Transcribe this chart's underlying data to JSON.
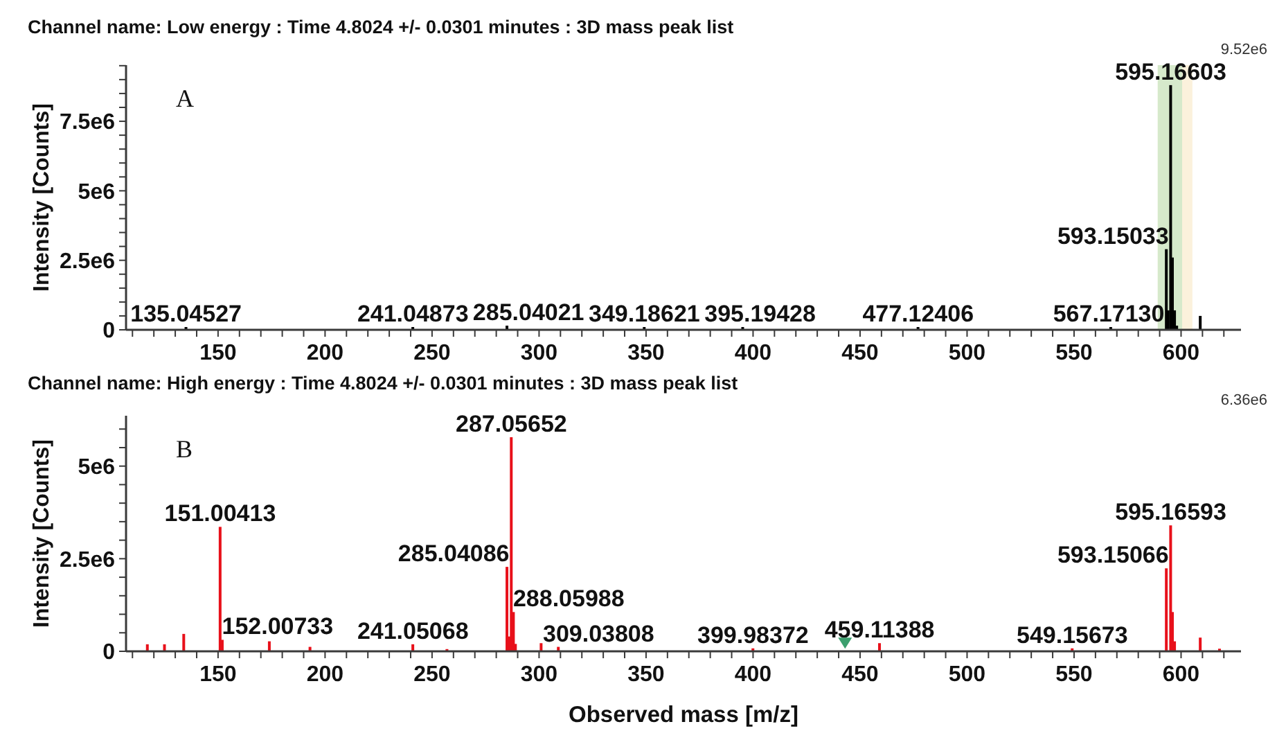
{
  "chart_data": [
    {
      "type": "bar",
      "title": "Channel name: Low energy : Time 4.8024 +/- 0.0301 minutes : 3D mass peak list",
      "ylabel": "Intensity [Counts]",
      "annotations": [
        "A",
        "9.52e6",
        {
          "text": "135.04527",
          "x": 135.04527,
          "y": 100000
        },
        {
          "text": "241.04873",
          "x": 241.04873,
          "y": 100000
        },
        {
          "text": "285.04021",
          "x": 285.04021,
          "y": 150000
        },
        {
          "text": "349.18621",
          "x": 349.18621,
          "y": 100000
        },
        {
          "text": "395.19428",
          "x": 395.19428,
          "y": 100000
        },
        {
          "text": "477.12406",
          "x": 477.12406,
          "y": 100000
        },
        {
          "text": "567.17130",
          "x": 567.1713,
          "y": 100000
        },
        {
          "text": "593.15033",
          "x": 593.15033,
          "y": 2900000
        },
        {
          "text": "595.16603",
          "x": 595.16603,
          "y": 8800000
        }
      ],
      "x": [
        135.04527,
        241.04873,
        285.04021,
        349.18621,
        395.19428,
        477.12406,
        567.1713,
        593.15033,
        594,
        595.16603,
        596,
        597,
        598,
        609
      ],
      "series": [
        {
          "color": "#000000",
          "values": [
            100000,
            100000,
            150000,
            100000,
            100000,
            100000,
            100000,
            2900000,
            700000,
            8800000,
            2600000,
            700000,
            150000,
            500000
          ]
        }
      ],
      "xlim": [
        107,
        628
      ],
      "ylim": [
        0,
        9520000
      ],
      "xticks": [
        {
          "value": 110,
          "label": null
        },
        {
          "value": 120,
          "label": null
        },
        {
          "value": 130,
          "label": null
        },
        {
          "value": 140,
          "label": null
        },
        150,
        {
          "value": 160,
          "label": null
        },
        {
          "value": 170,
          "label": null
        },
        {
          "value": 180,
          "label": null
        },
        {
          "value": 190,
          "label": null
        },
        200,
        {
          "value": 210,
          "label": null
        },
        {
          "value": 220,
          "label": null
        },
        {
          "value": 230,
          "label": null
        },
        {
          "value": 240,
          "label": null
        },
        250,
        {
          "value": 260,
          "label": null
        },
        {
          "value": 270,
          "label": null
        },
        {
          "value": 280,
          "label": null
        },
        {
          "value": 290,
          "label": null
        },
        300,
        {
          "value": 310,
          "label": null
        },
        {
          "value": 320,
          "label": null
        },
        {
          "value": 330,
          "label": null
        },
        {
          "value": 340,
          "label": null
        },
        350,
        {
          "value": 360,
          "label": null
        },
        {
          "value": 370,
          "label": null
        },
        {
          "value": 380,
          "label": null
        },
        {
          "value": 390,
          "label": null
        },
        400,
        {
          "value": 410,
          "label": null
        },
        {
          "value": 420,
          "label": null
        },
        {
          "value": 430,
          "label": null
        },
        {
          "value": 440,
          "label": null
        },
        450,
        {
          "value": 460,
          "label": null
        },
        {
          "value": 470,
          "label": null
        },
        {
          "value": 480,
          "label": null
        },
        {
          "value": 490,
          "label": null
        },
        500,
        {
          "value": 510,
          "label": null
        },
        {
          "value": 520,
          "label": null
        },
        {
          "value": 530,
          "label": null
        },
        {
          "value": 540,
          "label": null
        },
        550,
        {
          "value": 560,
          "label": null
        },
        {
          "value": 570,
          "label": null
        },
        {
          "value": 580,
          "label": null
        },
        {
          "value": 590,
          "label": null
        },
        600,
        {
          "value": 610,
          "label": null
        },
        {
          "value": 620,
          "label": null
        }
      ],
      "yticks": [
        0,
        {
          "value": 500000,
          "label": null
        },
        {
          "value": 1000000,
          "label": null
        },
        {
          "value": 1500000,
          "label": null
        },
        {
          "value": 2000000,
          "label": null
        },
        {
          "value": 2500000,
          "label": "2.5e6"
        },
        {
          "value": 3000000,
          "label": null
        },
        {
          "value": 3500000,
          "label": null
        },
        {
          "value": 4000000,
          "label": null
        },
        {
          "value": 4500000,
          "label": null
        },
        {
          "value": 5000000,
          "label": "5e6"
        },
        {
          "value": 5500000,
          "label": null
        },
        {
          "value": 6000000,
          "label": null
        },
        {
          "value": 6500000,
          "label": null
        },
        {
          "value": 7000000,
          "label": null
        },
        {
          "value": 7500000,
          "label": "7.5e6"
        },
        {
          "value": 8000000,
          "label": null
        },
        {
          "value": 8500000,
          "label": null
        },
        {
          "value": 9000000,
          "label": null
        },
        {
          "value": 9500000,
          "label": null
        }
      ],
      "bands": [
        {
          "axis": "x",
          "from": 589.1,
          "to": 605.3,
          "color": "#fbf1dc"
        },
        {
          "axis": "x",
          "from": 589.1,
          "to": 600.5,
          "color": "#d6e9cb"
        }
      ]
    },
    {
      "type": "bar",
      "title": "Channel name: High energy : Time 4.8024 +/- 0.0301 minutes : 3D mass peak list",
      "xlabel": "Observed mass [m/z]",
      "ylabel": "Intensity [Counts]",
      "annotations": [
        "B",
        "6.36e6",
        {
          "text": "151.00413",
          "x": 151.00413,
          "y": 3360000
        },
        {
          "text": "152.00733",
          "x": 152.00733,
          "y": 310000
        },
        {
          "text": "241.05068",
          "x": 241.05068,
          "y": 190000
        },
        {
          "text": "285.04086",
          "x": 285.04086,
          "y": 2280000
        },
        {
          "text": "287.05652",
          "x": 287.05652,
          "y": 5780000
        },
        {
          "text": "288.05988",
          "x": 288.05988,
          "y": 1060000
        },
        {
          "text": "309.03808",
          "x": 309.03808,
          "y": 120000
        },
        {
          "text": "399.98372",
          "x": 399.98372,
          "y": 80000
        },
        {
          "text": "459.11388",
          "x": 459.11388,
          "y": 220000
        },
        {
          "text": "549.15673",
          "x": 549.15673,
          "y": 80000
        },
        {
          "text": "593.15066",
          "x": 593.15066,
          "y": 2240000
        },
        {
          "text": "595.16593",
          "x": 595.16593,
          "y": 3400000
        }
      ],
      "x": [
        117,
        125,
        134,
        151.00413,
        152.00733,
        174,
        193,
        241.05068,
        257,
        285.04086,
        286,
        287.05652,
        288.05988,
        289,
        301,
        309.03808,
        399.98372,
        459.11388,
        549.15673,
        593.15066,
        595.16593,
        596,
        597,
        609,
        618
      ],
      "series": [
        {
          "color": "#e8101a",
          "values": [
            190000,
            190000,
            470000,
            3360000,
            310000,
            270000,
            120000,
            190000,
            60000,
            2280000,
            400000,
            5780000,
            1060000,
            200000,
            220000,
            120000,
            80000,
            220000,
            80000,
            2240000,
            3400000,
            1060000,
            270000,
            370000,
            70000
          ]
        },
        {
          "type": "scatter",
          "color": "#3c9f6e",
          "marker": "triangle",
          "x": [
            443
          ],
          "values": [
            220000
          ]
        }
      ],
      "xlim": [
        107,
        628
      ],
      "ylim": [
        0,
        6360000
      ],
      "xticks": [
        {
          "value": 110,
          "label": null
        },
        {
          "value": 120,
          "label": null
        },
        {
          "value": 130,
          "label": null
        },
        {
          "value": 140,
          "label": null
        },
        150,
        {
          "value": 160,
          "label": null
        },
        {
          "value": 170,
          "label": null
        },
        {
          "value": 180,
          "label": null
        },
        {
          "value": 190,
          "label": null
        },
        200,
        {
          "value": 210,
          "label": null
        },
        {
          "value": 220,
          "label": null
        },
        {
          "value": 230,
          "label": null
        },
        {
          "value": 240,
          "label": null
        },
        250,
        {
          "value": 260,
          "label": null
        },
        {
          "value": 270,
          "label": null
        },
        {
          "value": 280,
          "label": null
        },
        {
          "value": 290,
          "label": null
        },
        300,
        {
          "value": 310,
          "label": null
        },
        {
          "value": 320,
          "label": null
        },
        {
          "value": 330,
          "label": null
        },
        {
          "value": 340,
          "label": null
        },
        350,
        {
          "value": 360,
          "label": null
        },
        {
          "value": 370,
          "label": null
        },
        {
          "value": 380,
          "label": null
        },
        {
          "value": 390,
          "label": null
        },
        400,
        {
          "value": 410,
          "label": null
        },
        {
          "value": 420,
          "label": null
        },
        {
          "value": 430,
          "label": null
        },
        {
          "value": 440,
          "label": null
        },
        450,
        {
          "value": 460,
          "label": null
        },
        {
          "value": 470,
          "label": null
        },
        {
          "value": 480,
          "label": null
        },
        {
          "value": 490,
          "label": null
        },
        500,
        {
          "value": 510,
          "label": null
        },
        {
          "value": 520,
          "label": null
        },
        {
          "value": 530,
          "label": null
        },
        {
          "value": 540,
          "label": null
        },
        550,
        {
          "value": 560,
          "label": null
        },
        {
          "value": 570,
          "label": null
        },
        {
          "value": 580,
          "label": null
        },
        {
          "value": 590,
          "label": null
        },
        600,
        {
          "value": 610,
          "label": null
        },
        {
          "value": 620,
          "label": null
        }
      ],
      "yticks": [
        0,
        {
          "value": 500000,
          "label": null
        },
        {
          "value": 1000000,
          "label": null
        },
        {
          "value": 1500000,
          "label": null
        },
        {
          "value": 2000000,
          "label": null
        },
        {
          "value": 2500000,
          "label": "2.5e6"
        },
        {
          "value": 3000000,
          "label": null
        },
        {
          "value": 3500000,
          "label": null
        },
        {
          "value": 4000000,
          "label": null
        },
        {
          "value": 4500000,
          "label": null
        },
        {
          "value": 5000000,
          "label": "5e6"
        },
        {
          "value": 5500000,
          "label": null
        },
        {
          "value": 6000000,
          "label": null
        }
      ]
    }
  ]
}
